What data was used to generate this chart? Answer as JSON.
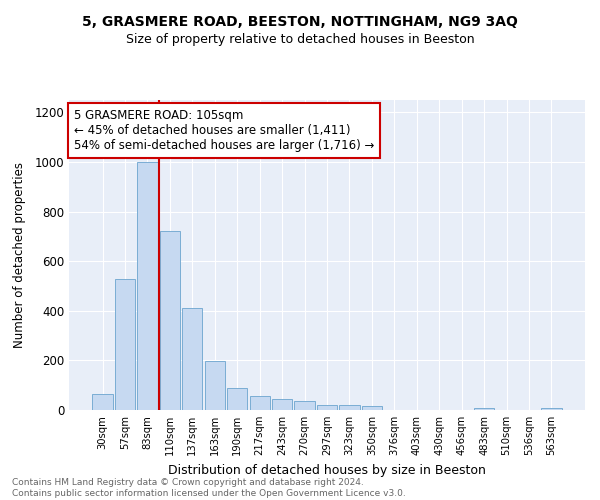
{
  "title1": "5, GRASMERE ROAD, BEESTON, NOTTINGHAM, NG9 3AQ",
  "title2": "Size of property relative to detached houses in Beeston",
  "xlabel": "Distribution of detached houses by size in Beeston",
  "ylabel": "Number of detached properties",
  "bar_labels": [
    "30sqm",
    "57sqm",
    "83sqm",
    "110sqm",
    "137sqm",
    "163sqm",
    "190sqm",
    "217sqm",
    "243sqm",
    "270sqm",
    "297sqm",
    "323sqm",
    "350sqm",
    "376sqm",
    "403sqm",
    "430sqm",
    "456sqm",
    "483sqm",
    "510sqm",
    "536sqm",
    "563sqm"
  ],
  "bar_values": [
    65,
    530,
    1000,
    720,
    410,
    197,
    88,
    58,
    43,
    35,
    20,
    20,
    17,
    0,
    0,
    0,
    0,
    10,
    0,
    0,
    10
  ],
  "bar_color": "#c6d9f1",
  "bar_edge_color": "#7aadd4",
  "vline_color": "#cc0000",
  "annotation_text": "5 GRASMERE ROAD: 105sqm\n← 45% of detached houses are smaller (1,411)\n54% of semi-detached houses are larger (1,716) →",
  "annotation_box_edge": "#cc0000",
  "ylim": [
    0,
    1250
  ],
  "yticks": [
    0,
    200,
    400,
    600,
    800,
    1000,
    1200
  ],
  "bg_color": "#e8eef8",
  "footer1": "Contains HM Land Registry data © Crown copyright and database right 2024.",
  "footer2": "Contains public sector information licensed under the Open Government Licence v3.0."
}
